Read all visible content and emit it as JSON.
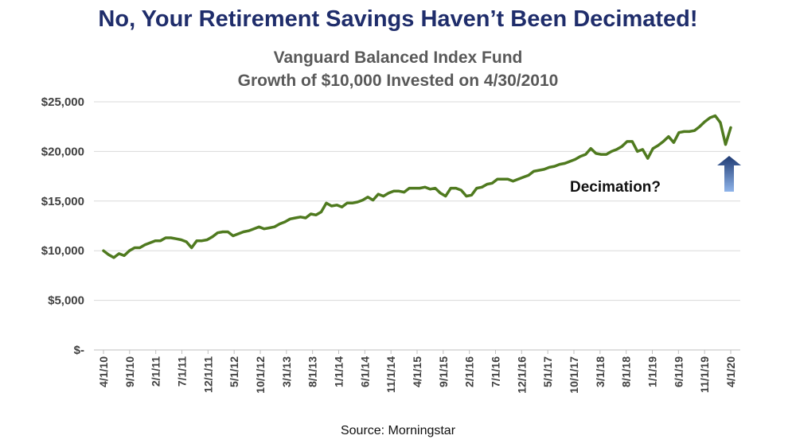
{
  "headline": "No, Your Retirement Savings Haven’t Been Decimated!",
  "source": "Source: Morningstar",
  "colors": {
    "line": "#4f7a1f",
    "headline": "#1f2d6b",
    "subtitle": "#595959",
    "arrow_top": "#1f3b73",
    "arrow_bottom": "#8fb4ea"
  },
  "chart_data": {
    "type": "line",
    "title": "Vanguard Balanced Index Fund",
    "subtitle": "Growth of $10,000 Invested on 4/30/2010",
    "xlabel": "",
    "ylabel": "",
    "ylim": [
      0,
      25000
    ],
    "grid": true,
    "y_ticks": [
      0,
      5000,
      10000,
      15000,
      20000,
      25000
    ],
    "y_tick_labels": [
      "$-",
      "$5,000",
      "$10,000",
      "$15,000",
      "$20,000",
      "$25,000"
    ],
    "x_tick_labels": [
      "4/1/10",
      "9/1/10",
      "2/1/11",
      "7/1/11",
      "12/1/11",
      "5/1/12",
      "10/1/12",
      "3/1/13",
      "8/1/13",
      "1/1/14",
      "6/1/14",
      "11/1/14",
      "4/1/15",
      "9/1/15",
      "2/1/16",
      "7/1/16",
      "12/1/16",
      "5/1/17",
      "10/1/17",
      "3/1/18",
      "8/1/18",
      "1/1/19",
      "6/1/19",
      "11/1/19",
      "4/1/20"
    ],
    "annotations": [
      {
        "text": "Decimation?",
        "x": "3/1/20"
      }
    ],
    "series": [
      {
        "values": [
          10000,
          9600,
          9300,
          9700,
          9500,
          10000,
          10300,
          10300,
          10600,
          10800,
          11000,
          11000,
          11300,
          11300,
          11200,
          11100,
          10900,
          10300,
          11000,
          11000,
          11100,
          11400,
          11800,
          11900,
          11900,
          11500,
          11700,
          11900,
          12000,
          12200,
          12400,
          12200,
          12300,
          12400,
          12700,
          12900,
          13200,
          13300,
          13400,
          13300,
          13700,
          13600,
          13900,
          14800,
          14500,
          14600,
          14400,
          14800,
          14800,
          14900,
          15100,
          15400,
          15100,
          15700,
          15500,
          15800,
          16000,
          16000,
          15900,
          16300,
          16300,
          16300,
          16400,
          16200,
          16300,
          15800,
          15500,
          16300,
          16300,
          16100,
          15500,
          15600,
          16300,
          16400,
          16700,
          16800,
          17200,
          17200,
          17200,
          17000,
          17200,
          17400,
          17600,
          18000,
          18100,
          18200,
          18400,
          18500,
          18700,
          18800,
          19000,
          19200,
          19500,
          19700,
          20300,
          19800,
          19700,
          19700,
          20000,
          20200,
          20500,
          21000,
          21000,
          20000,
          20200,
          19300,
          20300,
          20600,
          21000,
          21500,
          20900,
          21900,
          22000,
          22000,
          22100,
          22500,
          23000,
          23400,
          23600,
          22900,
          20700,
          22400
        ]
      }
    ]
  }
}
